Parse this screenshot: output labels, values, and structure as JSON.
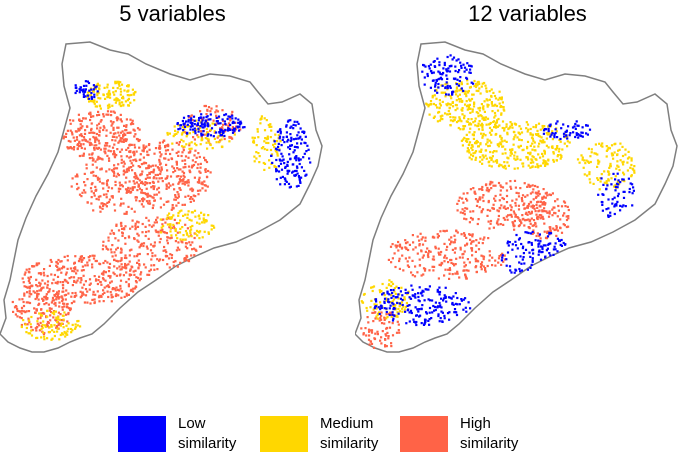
{
  "colors": {
    "low": "#0000ff",
    "medium": "#ffd700",
    "high": "#ff6347",
    "outline": "#7f7f7f",
    "background": "#ffffff"
  },
  "maps": [
    {
      "title": "5 variables"
    },
    {
      "title": "12 variables"
    }
  ],
  "legend": [
    {
      "key": "low",
      "line1": "Low",
      "line2": "similarity"
    },
    {
      "key": "medium",
      "line1": "Medium",
      "line2": "similarity"
    },
    {
      "key": "high",
      "line1": "High",
      "line2": "similarity"
    }
  ]
}
